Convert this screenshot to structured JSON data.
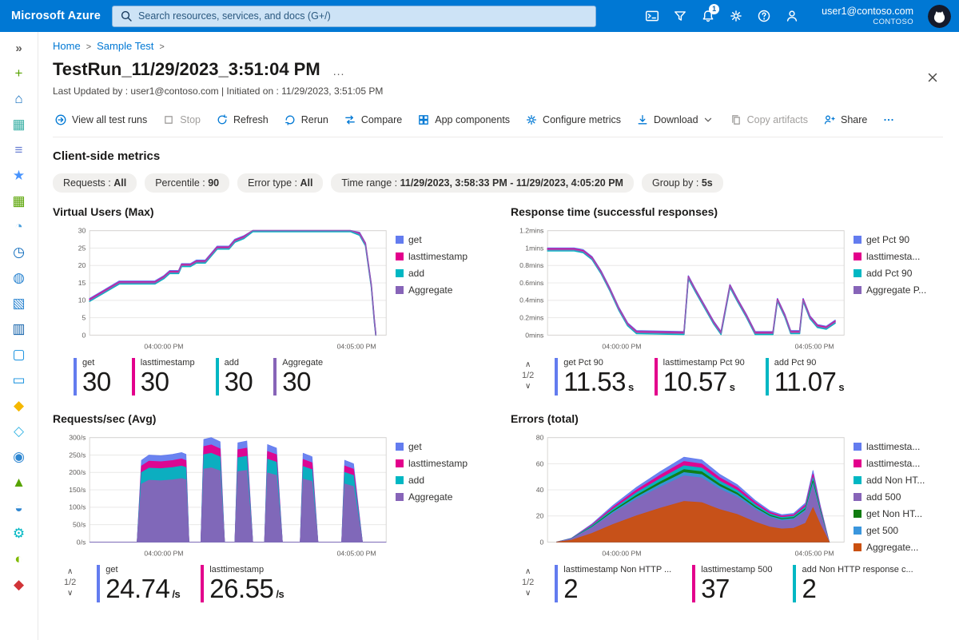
{
  "topbar": {
    "brand": "Microsoft Azure",
    "search_placeholder": "Search resources, services, and docs (G+/)",
    "user_email": "user1@contoso.com",
    "tenant": "CONTOSO",
    "icons": [
      {
        "name": "cloud-shell",
        "icon": "cloudshell"
      },
      {
        "name": "directory-filter",
        "icon": "filter"
      },
      {
        "name": "notifications",
        "icon": "bell",
        "badge": "1"
      },
      {
        "name": "settings",
        "icon": "gear"
      },
      {
        "name": "help",
        "icon": "help"
      },
      {
        "name": "feedback",
        "icon": "feedback"
      }
    ]
  },
  "sidebar": {
    "expand_glyph": "»",
    "items": [
      {
        "name": "create-resource",
        "glyph": "+",
        "color": "#57A300"
      },
      {
        "name": "home",
        "glyph": "⌂",
        "color": "#0F6CBD"
      },
      {
        "name": "dashboard",
        "glyph": "▦",
        "color": "#3BB0A5"
      },
      {
        "name": "all-services",
        "glyph": "≡",
        "color": "#6A7FD3"
      },
      {
        "name": "favorites",
        "glyph": "★",
        "color": "#4894FE"
      },
      {
        "name": "all-resources",
        "glyph": "▦",
        "color": "#57A300"
      },
      {
        "name": "resource-groups",
        "glyph": "◔",
        "color": "#4A9FDC"
      },
      {
        "name": "recent",
        "glyph": "◷",
        "color": "#0F6CBD"
      },
      {
        "name": "app-services",
        "glyph": "◍",
        "color": "#2E86D1"
      },
      {
        "name": "storage-accounts",
        "glyph": "▧",
        "color": "#2E86D1"
      },
      {
        "name": "sql-databases",
        "glyph": "▥",
        "color": "#0F5FA8"
      },
      {
        "name": "virtual-machines",
        "glyph": "▢",
        "color": "#1490DF"
      },
      {
        "name": "monitor",
        "glyph": "▭",
        "color": "#1490DF"
      },
      {
        "name": "key-vault",
        "glyph": "◆",
        "color": "#F5B800"
      },
      {
        "name": "cosmos-db",
        "glyph": "◇",
        "color": "#36B5E4"
      },
      {
        "name": "application-insights",
        "glyph": "◉",
        "color": "#2E86D1"
      },
      {
        "name": "security-center",
        "glyph": "▲",
        "color": "#57A300"
      },
      {
        "name": "users",
        "glyph": "◒",
        "color": "#2E86D1"
      },
      {
        "name": "advisor",
        "glyph": "⚙",
        "color": "#00B7C3"
      },
      {
        "name": "cost-management",
        "glyph": "◐",
        "color": "#7FBA00"
      },
      {
        "name": "defender",
        "glyph": "◆",
        "color": "#D13438"
      }
    ]
  },
  "breadcrumb": {
    "items": [
      "Home",
      "Sample Test"
    ]
  },
  "page": {
    "title": "TestRun_11/29/2023_3:51:04 PM",
    "title_more": "...",
    "meta": "Last Updated by : user1@contoso.com | Initiated on : 11/29/2023, 3:51:05 PM",
    "section_title": "Client-side metrics"
  },
  "toolbar": {
    "items": [
      {
        "label": "View all test runs",
        "icon": "view-all",
        "disabled": false
      },
      {
        "label": "Stop",
        "icon": "stop",
        "disabled": true
      },
      {
        "label": "Refresh",
        "icon": "refresh",
        "disabled": false
      },
      {
        "label": "Rerun",
        "icon": "rerun",
        "disabled": false
      },
      {
        "label": "Compare",
        "icon": "compare",
        "disabled": false
      },
      {
        "label": "App components",
        "icon": "app-components",
        "disabled": false
      },
      {
        "label": "Configure metrics",
        "icon": "configure-metrics",
        "disabled": false
      },
      {
        "label": "Download",
        "icon": "download",
        "disabled": false,
        "dropdown": true
      },
      {
        "label": "Copy artifacts",
        "icon": "copy",
        "disabled": true
      },
      {
        "label": "Share",
        "icon": "share",
        "disabled": false
      },
      {
        "label": "",
        "icon": "ellipsis",
        "disabled": false,
        "name": "more-commands"
      }
    ]
  },
  "filters": [
    {
      "label": "Requests",
      "value": "All"
    },
    {
      "label": "Percentile",
      "value": "90"
    },
    {
      "label": "Error type",
      "value": "All"
    },
    {
      "label": "Time range",
      "value": "11/29/2023, 3:58:33 PM - 11/29/2023, 4:05:20 PM"
    },
    {
      "label": "Group by",
      "value": "5s"
    }
  ],
  "colors": {
    "accent": "#0078d4",
    "blue": "#637CEF",
    "pink": "#E3008C",
    "teal": "#00B7C3",
    "purple": "#8764B8",
    "green": "#107C10",
    "lightblue": "#3A96DD",
    "orange": "#CA5010"
  },
  "chart_data": [
    {
      "type": "line",
      "title": "Virtual Users (Max)",
      "ymax": 30,
      "ylabels": [
        "30",
        "25",
        "20",
        "15",
        "10",
        "5",
        "0"
      ],
      "xlabels": [
        "04:00:00 PM",
        "04:05:00 PM"
      ],
      "xlabel_pos": [
        0.25,
        0.9
      ],
      "base": [
        [
          0,
          10
        ],
        [
          0.06,
          13
        ],
        [
          0.1,
          15
        ],
        [
          0.22,
          15
        ],
        [
          0.25,
          16.5
        ],
        [
          0.27,
          18
        ],
        [
          0.3,
          18
        ],
        [
          0.31,
          20
        ],
        [
          0.34,
          20
        ],
        [
          0.36,
          21
        ],
        [
          0.39,
          21
        ],
        [
          0.41,
          23
        ],
        [
          0.43,
          25
        ],
        [
          0.47,
          25
        ],
        [
          0.49,
          27
        ],
        [
          0.52,
          28
        ],
        [
          0.55,
          30
        ],
        [
          0.88,
          30
        ],
        [
          0.91,
          29
        ],
        [
          0.93,
          26
        ],
        [
          0.95,
          14
        ],
        [
          0.96,
          4
        ],
        [
          0.965,
          0
        ]
      ],
      "series": [
        {
          "name": "get",
          "color": "#637CEF",
          "offset": 0.5
        },
        {
          "name": "lasttimestamp",
          "color": "#E3008C",
          "offset": 0.25
        },
        {
          "name": "add",
          "color": "#00B7C3",
          "offset": -0.3
        },
        {
          "name": "Aggregate",
          "color": "#8764B8",
          "offset": 0
        }
      ],
      "legend": [
        {
          "name": "get",
          "color": "#637CEF"
        },
        {
          "name": "lasttimestamp",
          "color": "#E3008C"
        },
        {
          "name": "add",
          "color": "#00B7C3"
        },
        {
          "name": "Aggregate",
          "color": "#8764B8"
        }
      ],
      "pagination": null,
      "stats": [
        {
          "label": "get",
          "value": "30",
          "unit": "",
          "color": "#637CEF"
        },
        {
          "label": "lasttimestamp",
          "value": "30",
          "unit": "",
          "color": "#E3008C"
        },
        {
          "label": "add",
          "value": "30",
          "unit": "",
          "color": "#00B7C3"
        },
        {
          "label": "Aggregate",
          "value": "30",
          "unit": "",
          "color": "#8764B8"
        }
      ]
    },
    {
      "type": "line",
      "title": "Response time (successful responses)",
      "ymax": 1.2,
      "ylabels": [
        "1.2mins",
        "1mins",
        "0.8mins",
        "0.6mins",
        "0.4mins",
        "0.2mins",
        "0mins"
      ],
      "xlabels": [
        "04:00:00 PM",
        "04:05:00 PM"
      ],
      "xlabel_pos": [
        0.25,
        0.9
      ],
      "base": [
        [
          0,
          0.98
        ],
        [
          0.09,
          0.98
        ],
        [
          0.12,
          0.96
        ],
        [
          0.15,
          0.88
        ],
        [
          0.18,
          0.72
        ],
        [
          0.21,
          0.52
        ],
        [
          0.24,
          0.3
        ],
        [
          0.27,
          0.12
        ],
        [
          0.3,
          0.03
        ],
        [
          0.46,
          0.02
        ],
        [
          0.475,
          0.66
        ],
        [
          0.5,
          0.5
        ],
        [
          0.53,
          0.32
        ],
        [
          0.56,
          0.14
        ],
        [
          0.585,
          0.02
        ],
        [
          0.615,
          0.56
        ],
        [
          0.64,
          0.4
        ],
        [
          0.67,
          0.22
        ],
        [
          0.7,
          0.02
        ],
        [
          0.76,
          0.02
        ],
        [
          0.775,
          0.4
        ],
        [
          0.8,
          0.22
        ],
        [
          0.82,
          0.03
        ],
        [
          0.85,
          0.03
        ],
        [
          0.862,
          0.4
        ],
        [
          0.885,
          0.2
        ],
        [
          0.91,
          0.1
        ],
        [
          0.94,
          0.08
        ],
        [
          0.97,
          0.15
        ]
      ],
      "series": [
        {
          "name": "get Pct 90",
          "color": "#637CEF",
          "offset": 0.02
        },
        {
          "name": "lasttimestamp Pct 90",
          "color": "#E3008C",
          "offset": 0.01
        },
        {
          "name": "add Pct 90",
          "color": "#00B7C3",
          "offset": -0.012
        },
        {
          "name": "Aggregate Pct 90",
          "color": "#8764B8",
          "offset": 0
        }
      ],
      "legend": [
        {
          "name": "get Pct 90",
          "color": "#637CEF"
        },
        {
          "name": "lasttimesta...",
          "color": "#E3008C"
        },
        {
          "name": "add Pct 90",
          "color": "#00B7C3"
        },
        {
          "name": "Aggregate P...",
          "color": "#8764B8"
        }
      ],
      "pagination": "1/2",
      "stats": [
        {
          "label": "get Pct 90",
          "value": "11.53",
          "unit": "s",
          "color": "#637CEF"
        },
        {
          "label": "lasttimestamp Pct 90",
          "value": "10.57",
          "unit": "s",
          "color": "#E3008C"
        },
        {
          "label": "add Pct 90",
          "value": "11.07",
          "unit": "s",
          "color": "#00B7C3"
        }
      ]
    },
    {
      "type": "area",
      "title": "Requests/sec (Avg)",
      "ymax": 300,
      "ylabels": [
        "300/s",
        "250/s",
        "200/s",
        "150/s",
        "100/s",
        "50/s",
        "0/s"
      ],
      "xlabels": [
        "04:00:00 PM",
        "04:05:00 PM"
      ],
      "xlabel_pos": [
        0.25,
        0.9
      ],
      "base": [
        [
          0,
          0
        ],
        [
          0.16,
          0
        ],
        [
          0.175,
          235
        ],
        [
          0.2,
          250
        ],
        [
          0.24,
          248
        ],
        [
          0.28,
          252
        ],
        [
          0.31,
          257
        ],
        [
          0.325,
          252
        ],
        [
          0.335,
          0
        ],
        [
          0.375,
          0
        ],
        [
          0.385,
          295
        ],
        [
          0.41,
          300
        ],
        [
          0.44,
          288
        ],
        [
          0.455,
          0
        ],
        [
          0.49,
          0
        ],
        [
          0.5,
          285
        ],
        [
          0.53,
          290
        ],
        [
          0.55,
          0
        ],
        [
          0.59,
          0
        ],
        [
          0.6,
          280
        ],
        [
          0.63,
          270
        ],
        [
          0.65,
          0
        ],
        [
          0.71,
          0
        ],
        [
          0.72,
          255
        ],
        [
          0.75,
          245
        ],
        [
          0.77,
          0
        ],
        [
          0.85,
          0
        ],
        [
          0.86,
          235
        ],
        [
          0.89,
          225
        ],
        [
          0.92,
          0
        ],
        [
          1,
          0
        ]
      ],
      "series": [
        {
          "name": "get",
          "color": "#637CEF",
          "scale": 1
        },
        {
          "name": "lasttimestamp",
          "color": "#E3008C",
          "scale": 0.93
        },
        {
          "name": "add",
          "color": "#00B7C3",
          "scale": 0.85
        },
        {
          "name": "Aggregate",
          "color": "#8764B8",
          "scale": 0.71
        }
      ],
      "legend": [
        {
          "name": "get",
          "color": "#637CEF"
        },
        {
          "name": "lasttimestamp",
          "color": "#E3008C"
        },
        {
          "name": "add",
          "color": "#00B7C3"
        },
        {
          "name": "Aggregate",
          "color": "#8764B8"
        }
      ],
      "pagination": "1/2",
      "stats": [
        {
          "label": "get",
          "value": "24.74",
          "unit": "/s",
          "color": "#637CEF"
        },
        {
          "label": "lasttimestamp",
          "value": "26.55",
          "unit": "/s",
          "color": "#E3008C"
        }
      ]
    },
    {
      "type": "area",
      "title": "Errors (total)",
      "ymax": 80,
      "ylabels": [
        "80",
        "60",
        "40",
        "20",
        "0"
      ],
      "xlabels": [
        "04:00:00 PM",
        "04:05:00 PM"
      ],
      "xlabel_pos": [
        0.25,
        0.9
      ],
      "base": [
        [
          0.03,
          0
        ],
        [
          0.08,
          3
        ],
        [
          0.15,
          14
        ],
        [
          0.22,
          28
        ],
        [
          0.3,
          42
        ],
        [
          0.38,
          54
        ],
        [
          0.46,
          65
        ],
        [
          0.52,
          63
        ],
        [
          0.58,
          52
        ],
        [
          0.64,
          44
        ],
        [
          0.7,
          32
        ],
        [
          0.75,
          24
        ],
        [
          0.79,
          21
        ],
        [
          0.83,
          22
        ],
        [
          0.87,
          30
        ],
        [
          0.895,
          55
        ],
        [
          0.92,
          28
        ],
        [
          0.95,
          0
        ]
      ],
      "series": [
        {
          "name": "lasttimestamp Non HTTP errors",
          "color": "#637CEF",
          "scale": 1
        },
        {
          "name": "lasttimestamp 500",
          "color": "#E3008C",
          "scale": 0.95
        },
        {
          "name": "add Non HTTP errors",
          "color": "#00B7C3",
          "scale": 0.9
        },
        {
          "name": "get Non HTTP errors",
          "color": "#107C10",
          "scale": 0.855
        },
        {
          "name": "get 500",
          "color": "#3A96DD",
          "scale": 0.82
        },
        {
          "name": "add 500",
          "color": "#8764B8",
          "scale": 0.78
        },
        {
          "name": "Aggregate",
          "color": "#CA5010",
          "scale": 0.48
        }
      ],
      "legend": [
        {
          "name": "lasttimesta...",
          "color": "#637CEF"
        },
        {
          "name": "lasttimesta...",
          "color": "#E3008C"
        },
        {
          "name": "add Non HT...",
          "color": "#00B7C3"
        },
        {
          "name": "add 500",
          "color": "#8764B8"
        },
        {
          "name": "get Non HT...",
          "color": "#107C10"
        },
        {
          "name": "get 500",
          "color": "#3A96DD"
        },
        {
          "name": "Aggregate...",
          "color": "#CA5010"
        }
      ],
      "pagination": "1/2",
      "stats": [
        {
          "label": "lasttimestamp Non HTTP ...",
          "value": "2",
          "unit": "",
          "color": "#637CEF"
        },
        {
          "label": "lasttimestamp 500",
          "value": "37",
          "unit": "",
          "color": "#E3008C"
        },
        {
          "label": "add Non HTTP response c...",
          "value": "2",
          "unit": "",
          "color": "#00B7C3"
        }
      ]
    }
  ]
}
